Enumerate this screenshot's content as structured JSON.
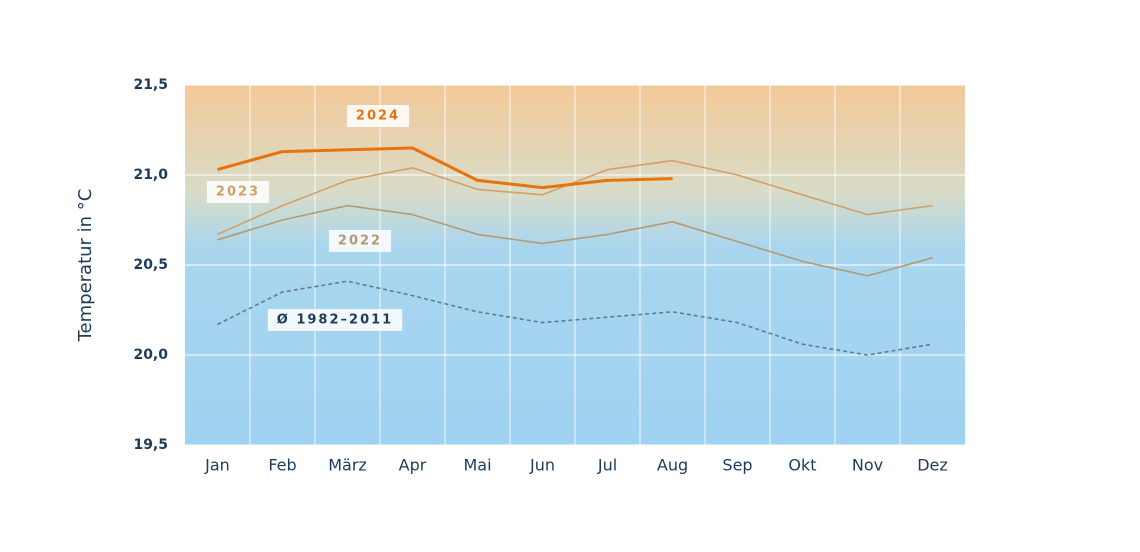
{
  "chart_data": {
    "type": "line",
    "y_label": "Temperatur in °C",
    "categories": [
      "Jan",
      "Feb",
      "März",
      "Apr",
      "Mai",
      "Jun",
      "Jul",
      "Aug",
      "Sep",
      "Okt",
      "Nov",
      "Dez"
    ],
    "series": [
      {
        "name": "Ø 1982–2011",
        "color": "#5f7d8c",
        "dashed": true,
        "values": [
          20.17,
          20.35,
          20.41,
          20.33,
          20.24,
          20.18,
          20.21,
          20.24,
          20.18,
          20.06,
          20.0,
          20.06
        ]
      },
      {
        "name": "2022",
        "color": "#b49a74",
        "values": [
          20.64,
          20.75,
          20.83,
          20.78,
          20.67,
          20.62,
          20.67,
          20.74,
          20.63,
          20.52,
          20.44,
          20.54
        ]
      },
      {
        "name": "2023",
        "color": "#d3a067",
        "values": [
          20.67,
          20.83,
          20.97,
          21.04,
          20.92,
          20.89,
          21.03,
          21.08,
          21.0,
          20.89,
          20.78,
          20.83
        ]
      },
      {
        "name": "2024",
        "color": "#e8730c",
        "values": [
          21.03,
          21.13,
          21.14,
          21.15,
          20.97,
          20.93,
          20.97,
          20.98,
          null,
          null,
          null,
          null
        ]
      }
    ],
    "ylim": [
      19.5,
      21.5
    ],
    "yticks": [
      {
        "value": 19.5,
        "label": "19,5"
      },
      {
        "value": 20.0,
        "label": "20,0"
      },
      {
        "value": 20.5,
        "label": "20,5"
      },
      {
        "value": 21.0,
        "label": "21,0"
      },
      {
        "value": 21.5,
        "label": "21,5"
      }
    ],
    "grid": true
  }
}
